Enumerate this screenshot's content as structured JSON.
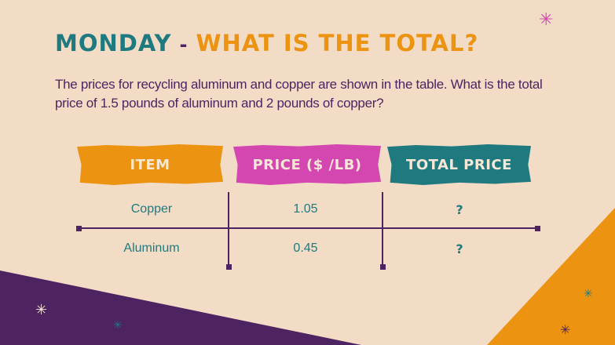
{
  "title": {
    "part1": "MONDAY",
    "separator": "-",
    "part2": "WHAT IS THE TOTAL?"
  },
  "question": "The prices for recycling aluminum and copper are shown in the table. What is the total price of 1.5 pounds of aluminum and 2 pounds of copper?",
  "table": {
    "headers": [
      "ITEM",
      "PRICE ($ /LB)",
      "TOTAL PRICE"
    ],
    "rows": [
      [
        "Copper",
        "1.05",
        "?"
      ],
      [
        "Aluminum",
        "0.45",
        "?"
      ]
    ]
  },
  "colors": {
    "background": "#f2dcc6",
    "teal": "#1f7a80",
    "orange": "#ec9412",
    "magenta": "#d447b0",
    "purple": "#4e2361"
  }
}
